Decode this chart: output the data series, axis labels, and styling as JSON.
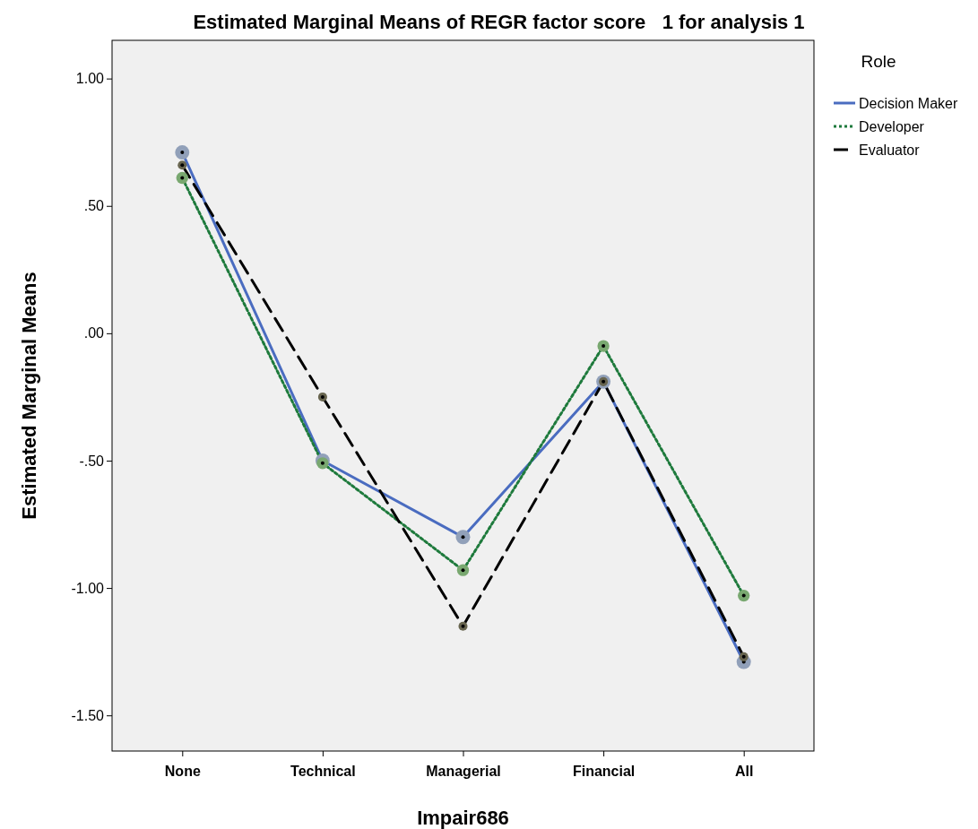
{
  "chart_data": {
    "type": "line",
    "title": "Estimated Marginal Means of REGR factor score   1 for analysis 1",
    "xlabel": "Impair686",
    "ylabel": "Estimated Marginal Means",
    "legend_title": "Role",
    "legend": "right",
    "marker": "circle",
    "grid": false,
    "categories": [
      "None",
      "Technical",
      "Managerial",
      "Financial",
      "All"
    ],
    "ylim": [
      -1.64,
      1.15
    ],
    "yticks": [
      {
        "value": 1,
        "label": "1.00"
      },
      {
        "value": 0.5,
        "label": ".50"
      },
      {
        "value": 0,
        "label": ".00"
      },
      {
        "value": -0.5,
        "label": "-.50"
      },
      {
        "value": -1,
        "label": "-1.00"
      },
      {
        "value": -1.5,
        "label": "-1.50"
      }
    ],
    "series": [
      {
        "name": "Decision Maker",
        "color": "#4a6cc0",
        "line_style": "solid",
        "values": [
          0.71,
          -0.5,
          -0.8,
          -0.19,
          -1.29
        ]
      },
      {
        "name": "Developer",
        "color": "#1e7a3c",
        "line_style": "dotted",
        "values": [
          0.61,
          -0.51,
          -0.93,
          -0.05,
          -1.03
        ]
      },
      {
        "name": "Evaluator",
        "color": "#000000",
        "line_style": "dashed",
        "values": [
          0.66,
          -0.25,
          -1.15,
          -0.19,
          -1.27
        ]
      }
    ]
  }
}
